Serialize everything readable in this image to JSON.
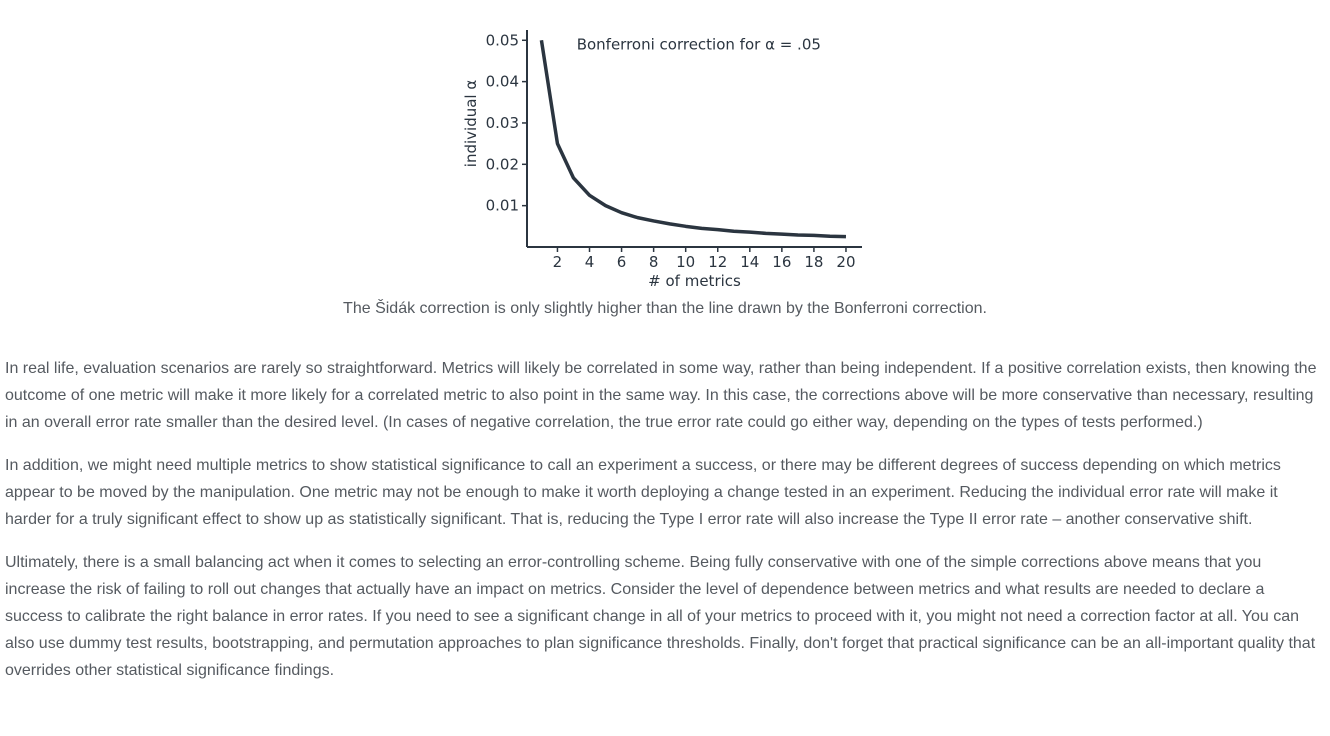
{
  "chart_data": {
    "type": "line",
    "title": "Bonferroni correction for α = .05",
    "xlabel": "# of metrics",
    "ylabel": "individual α",
    "xlim": [
      0.1,
      21.0
    ],
    "ylim": [
      0.0,
      0.052
    ],
    "x_ticks": [
      2,
      4,
      6,
      8,
      10,
      12,
      14,
      16,
      18,
      20
    ],
    "y_ticks": [
      0.01,
      0.02,
      0.03,
      0.04,
      0.05
    ],
    "y_tick_labels": [
      "0.01",
      "0.02",
      "0.03",
      "0.04",
      "0.05"
    ],
    "grid": false,
    "line_color": "#2b3540",
    "series": [
      {
        "x": [
          1,
          2,
          3,
          4,
          5,
          6,
          7,
          8,
          9,
          10,
          11,
          12,
          13,
          14,
          15,
          16,
          17,
          18,
          19,
          20
        ],
        "values": [
          0.05,
          0.025,
          0.0167,
          0.0125,
          0.01,
          0.0083,
          0.0071,
          0.0063,
          0.0056,
          0.005,
          0.0045,
          0.0042,
          0.0038,
          0.0036,
          0.0033,
          0.0031,
          0.0029,
          0.0028,
          0.0026,
          0.0025
        ]
      }
    ]
  },
  "caption": "The Šidák correction is only slightly higher than the line drawn by the Bonferroni correction.",
  "paragraphs": [
    "In real life, evaluation scenarios are rarely so straightforward. Metrics will likely be correlated in some way, rather than being independent. If a positive correlation exists, then knowing the outcome of one metric will make it more likely for a correlated metric to also point in the same way. In this case, the corrections above will be more conservative than necessary, resulting in an overall error rate smaller than the desired level. (In cases of negative correlation, the true error rate could go either way, depending on the types of tests performed.)",
    "In addition, we might need multiple metrics to show statistical significance to call an experiment a success, or there may be different degrees of success depending on which metrics appear to be moved by the manipulation. One metric may not be enough to make it worth deploying a change tested in an experiment. Reducing the individual error rate will make it harder for a truly significant effect to show up as statistically significant. That is, reducing the Type I error rate will also increase the Type II error rate – another conservative shift.",
    "Ultimately, there is a small balancing act when it comes to selecting an error-controlling scheme. Being fully conservative with one of the simple corrections above means that you increase the risk of failing to roll out changes that actually have an impact on metrics. Consider the level of dependence between metrics and what results are needed to declare a success to calibrate the right balance in error rates. If you need to see a significant change in all of your metrics to proceed with it, you might not need a correction factor at all. You can also use dummy test results, bootstrapping, and permutation approaches to plan significance thresholds. Finally, don't forget that practical significance can be an all-important quality that overrides other statistical significance findings."
  ]
}
